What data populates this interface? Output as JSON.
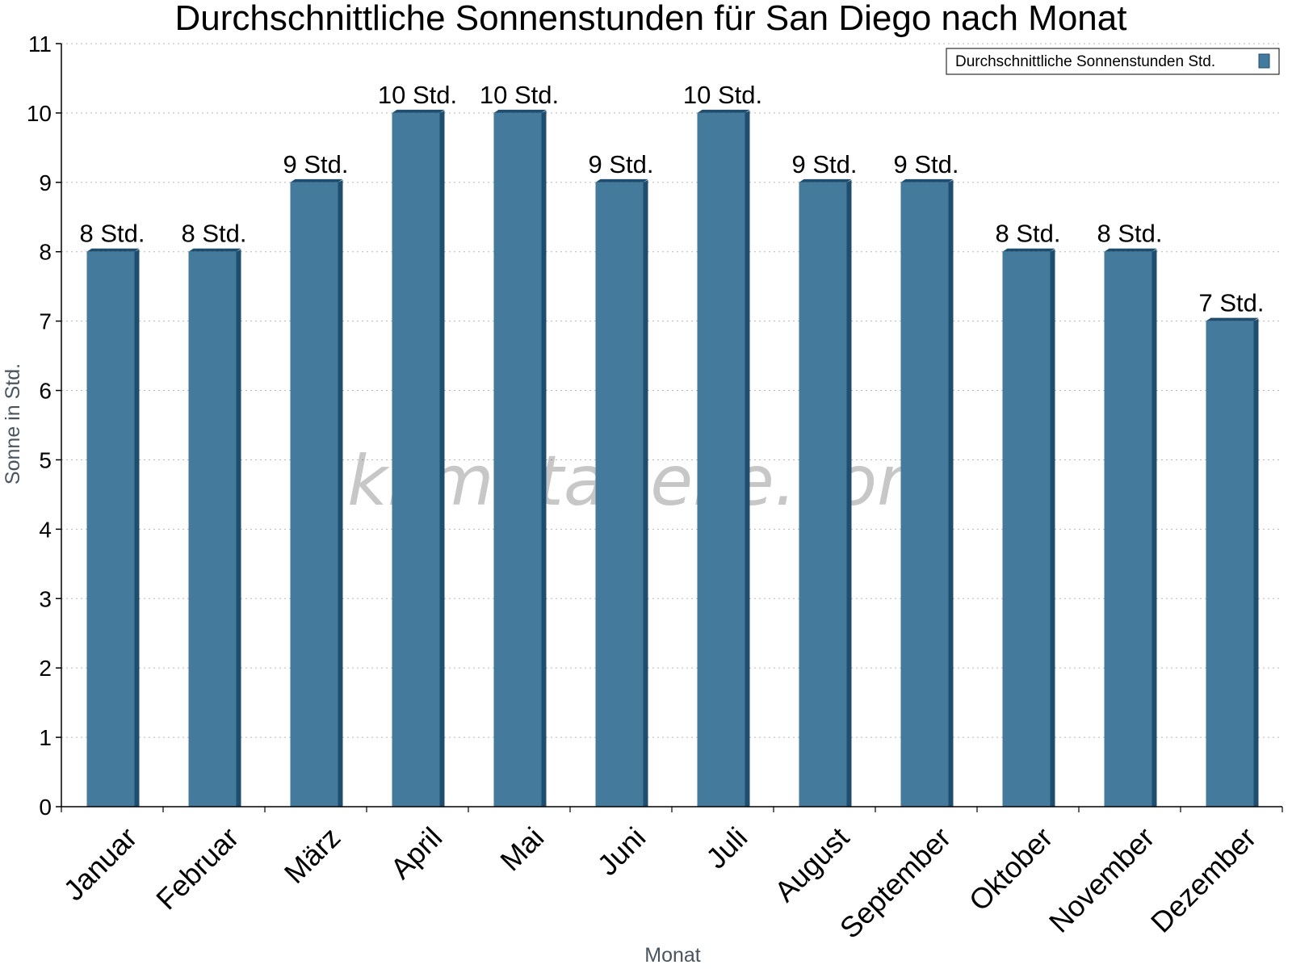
{
  "chart_data": {
    "type": "bar",
    "title": "Durchschnittliche Sonnenstunden für San Diego nach Monat",
    "xlabel": "Monat",
    "ylabel": "Sonne in Std.",
    "ylim": [
      0,
      11
    ],
    "yticks": [
      0,
      1,
      2,
      3,
      4,
      5,
      6,
      7,
      8,
      9,
      10,
      11
    ],
    "grid": true,
    "legend_position": "top-right",
    "categories": [
      "Januar",
      "Februar",
      "März",
      "April",
      "Mai",
      "Juni",
      "Juli",
      "August",
      "September",
      "Oktober",
      "November",
      "Dezember"
    ],
    "series": [
      {
        "name": "Durchschnittliche Sonnenstunden Std.",
        "values": [
          8,
          8,
          9,
          10,
          10,
          9,
          10,
          9,
          9,
          8,
          8,
          7
        ],
        "labels": [
          "8 Std.",
          "8 Std.",
          "9 Std.",
          "10 Std.",
          "10 Std.",
          "9 Std.",
          "10 Std.",
          "9 Std.",
          "9 Std.",
          "8 Std.",
          "8 Std.",
          "7 Std."
        ],
        "color": "#447a9c",
        "shade_color": "#1e4d6e"
      }
    ]
  },
  "watermark": "klimatabelle.com"
}
